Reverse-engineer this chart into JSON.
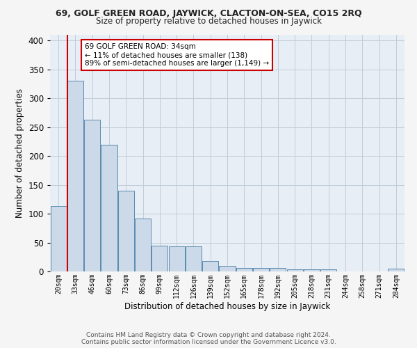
{
  "title1": "69, GOLF GREEN ROAD, JAYWICK, CLACTON-ON-SEA, CO15 2RQ",
  "title2": "Size of property relative to detached houses in Jaywick",
  "xlabel": "Distribution of detached houses by size in Jaywick",
  "ylabel": "Number of detached properties",
  "bin_labels": [
    "20sqm",
    "33sqm",
    "46sqm",
    "60sqm",
    "73sqm",
    "86sqm",
    "99sqm",
    "112sqm",
    "126sqm",
    "139sqm",
    "152sqm",
    "165sqm",
    "178sqm",
    "192sqm",
    "205sqm",
    "218sqm",
    "231sqm",
    "244sqm",
    "258sqm",
    "271sqm",
    "284sqm"
  ],
  "bin_values": [
    113,
    330,
    263,
    220,
    140,
    92,
    45,
    44,
    43,
    18,
    10,
    6,
    6,
    6,
    4,
    4,
    4,
    0,
    0,
    0,
    5
  ],
  "bar_color": "#ccd9e8",
  "bar_edge_color": "#5a8ab0",
  "property_bin_index": 1,
  "vline_color": "#cc0000",
  "annotation_text": "69 GOLF GREEN ROAD: 34sqm\n← 11% of detached houses are smaller (138)\n89% of semi-detached houses are larger (1,149) →",
  "annotation_box_color": "#ffffff",
  "annotation_box_edge": "#cc0000",
  "ylim": [
    0,
    410
  ],
  "yticks": [
    0,
    50,
    100,
    150,
    200,
    250,
    300,
    350,
    400
  ],
  "grid_color": "#c0ccd8",
  "background_color": "#e8eef6",
  "fig_background": "#f5f5f5",
  "footer_text": "Contains HM Land Registry data © Crown copyright and database right 2024.\nContains public sector information licensed under the Government Licence v3.0."
}
